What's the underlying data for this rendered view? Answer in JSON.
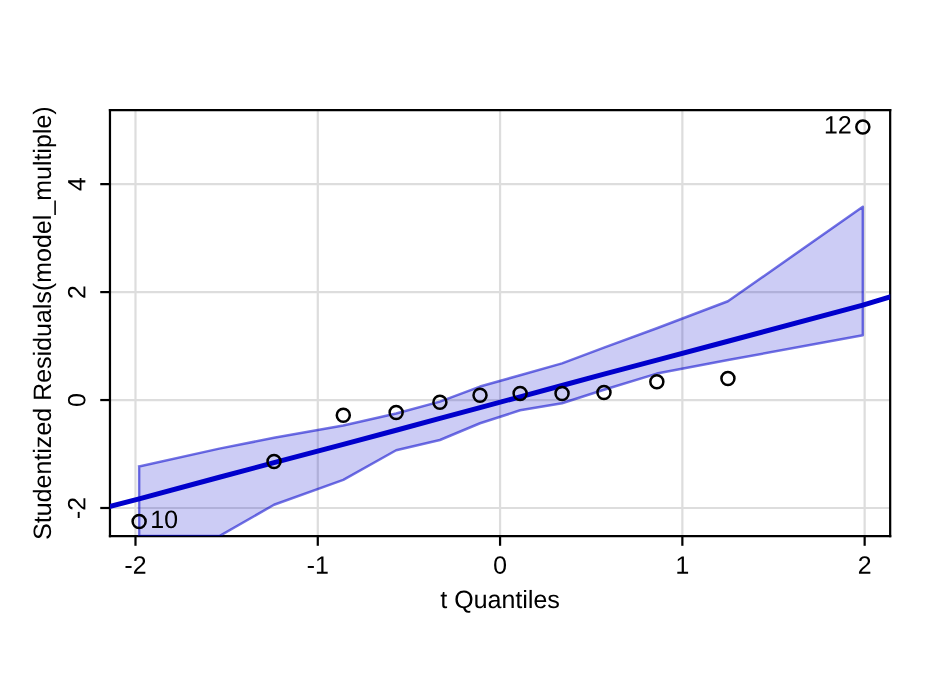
{
  "chart_data": {
    "type": "scatter",
    "xlabel": "t Quantiles",
    "ylabel": "Studentized Residuals(model_multiple)",
    "xlim": [
      -2.14,
      2.14
    ],
    "ylim": [
      -2.52,
      5.37
    ],
    "xticks": [
      -2,
      -1,
      0,
      1,
      2
    ],
    "yticks": [
      -2,
      0,
      2,
      4
    ],
    "grid": true,
    "series": [
      {
        "type": "line",
        "color": "#0000cc",
        "x": [
          -2.14,
          -1.98,
          -1.54,
          -1.24,
          -0.86,
          -0.57,
          -0.33,
          -0.11,
          0.11,
          0.34,
          0.57,
          0.86,
          1.25,
          1.99,
          2.14
        ],
        "values": [
          -1.97,
          -1.83,
          -1.43,
          -1.16,
          -0.82,
          -0.56,
          -0.34,
          -0.14,
          0.06,
          0.27,
          0.48,
          0.74,
          1.09,
          1.76,
          1.91
        ],
        "lower": [
          null,
          -2.52,
          -2.52,
          -1.94,
          -1.48,
          -0.93,
          -0.74,
          -0.43,
          -0.19,
          -0.06,
          0.19,
          0.49,
          0.74,
          1.2,
          null
        ],
        "upper": [
          null,
          -1.23,
          -0.9,
          -0.7,
          -0.47,
          -0.25,
          -0.03,
          0.25,
          0.46,
          0.68,
          0.97,
          1.33,
          1.83,
          3.58,
          null
        ]
      },
      {
        "color": "#000000",
        "marker": "circle",
        "x": [
          -1.98,
          -1.24,
          -0.86,
          -0.57,
          -0.33,
          -0.11,
          0.11,
          0.34,
          0.57,
          0.86,
          1.25,
          1.99
        ],
        "values": [
          -2.25,
          -1.14,
          -0.28,
          -0.23,
          -0.04,
          0.09,
          0.12,
          0.12,
          0.14,
          0.34,
          0.4,
          5.06
        ]
      }
    ],
    "annotations": [
      {
        "text": "10",
        "x": -1.98,
        "y": -2.25
      },
      {
        "text": "12",
        "x": 1.99,
        "y": 5.06
      }
    ]
  }
}
